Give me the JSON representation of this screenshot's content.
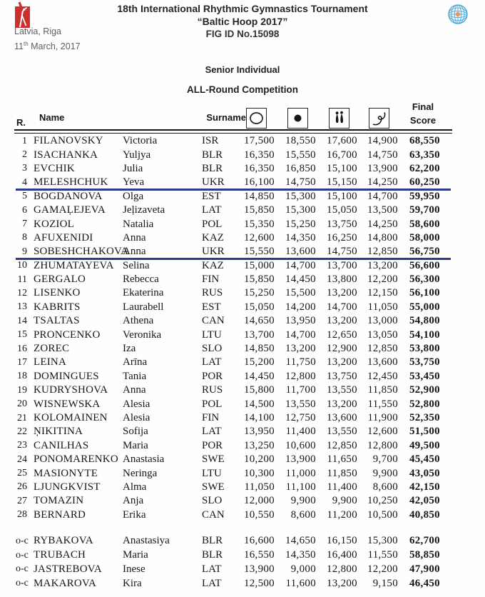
{
  "header": {
    "title_line1": "18th International Rhythmic Gymnastics Tournament",
    "title_line2": "“Baltic Hoop 2017”",
    "title_line3": "FIG ID No.15098",
    "location": "Latvia, Riga",
    "date_day": "11",
    "date_suffix": "th",
    "date_rest": " March, 2017",
    "left_logo": "gymnast-red-logo",
    "right_logo": "fig-globe-logo"
  },
  "section": {
    "line1": "Senior Individual",
    "line2": "ALL-Round Competition"
  },
  "table": {
    "headers": {
      "rank": "R.",
      "name": "Name",
      "surname": "Surname",
      "final_line1": "Final",
      "final_line2": "Score"
    },
    "apparatus": [
      "hoop",
      "ball",
      "clubs",
      "ribbon"
    ],
    "colors": {
      "divider_blue": "#2e3a8c",
      "logo_red": "#cd2f2f",
      "globe_blue": "#3f9fd0"
    },
    "blue_divider_after_ranks": [
      "4",
      "9"
    ],
    "rows": [
      {
        "rank": "1",
        "surname": "FILANOVSKY",
        "firstname": "Victoria",
        "country": "ISR",
        "hoop": "17,500",
        "ball": "18,550",
        "clubs": "17,600",
        "ribbon": "14,900",
        "final": "68,550"
      },
      {
        "rank": "2",
        "surname": "ISACHANKA",
        "firstname": "Yuljya",
        "country": "BLR",
        "hoop": "16,350",
        "ball": "15,550",
        "clubs": "16,700",
        "ribbon": "14,750",
        "final": "63,350"
      },
      {
        "rank": "3",
        "surname": "EVCHIK",
        "firstname": "Julia",
        "country": "BLR",
        "hoop": "16,350",
        "ball": "16,850",
        "clubs": "15,100",
        "ribbon": "13,900",
        "final": "62,200"
      },
      {
        "rank": "4",
        "surname": "MELESHCHUK",
        "firstname": "Yeva",
        "country": "UKR",
        "hoop": "16,100",
        "ball": "14,750",
        "clubs": "15,150",
        "ribbon": "14,250",
        "final": "60,250"
      },
      {
        "rank": "5",
        "surname": "BOGDANOVA",
        "firstname": "Olga",
        "country": "EST",
        "hoop": "14,850",
        "ball": "15,300",
        "clubs": "15,100",
        "ribbon": "14,700",
        "final": "59,950"
      },
      {
        "rank": "6",
        "surname": "GAMAĻEJEVA",
        "firstname": "Jeļizaveta",
        "country": "LAT",
        "hoop": "15,850",
        "ball": "15,300",
        "clubs": "15,050",
        "ribbon": "13,500",
        "final": "59,700"
      },
      {
        "rank": "7",
        "surname": "KOZIOL",
        "firstname": "Natalia",
        "country": "POL",
        "hoop": "15,350",
        "ball": "15,250",
        "clubs": "13,750",
        "ribbon": "14,250",
        "final": "58,600"
      },
      {
        "rank": "8",
        "surname": "AFUXENIDI",
        "firstname": "Anna",
        "country": "KAZ",
        "hoop": "12,600",
        "ball": "14,350",
        "clubs": "16,250",
        "ribbon": "14,800",
        "final": "58,000"
      },
      {
        "rank": "9",
        "surname": "SOBESHCHAKOVA",
        "firstname": "Anna",
        "country": "UKR",
        "hoop": "15,550",
        "ball": "13,600",
        "clubs": "14,750",
        "ribbon": "12,850",
        "final": "56,750"
      },
      {
        "rank": "10",
        "surname": "ZHUMATAYEVA",
        "firstname": "Selina",
        "country": "KAZ",
        "hoop": "15,000",
        "ball": "14,700",
        "clubs": "13,700",
        "ribbon": "13,200",
        "final": "56,600"
      },
      {
        "rank": "11",
        "surname": "GERGALO",
        "firstname": "Rebecca",
        "country": "FIN",
        "hoop": "15,850",
        "ball": "14,450",
        "clubs": "13,800",
        "ribbon": "12,200",
        "final": "56,300"
      },
      {
        "rank": "12",
        "surname": "LISENKO",
        "firstname": "Ekaterina",
        "country": "RUS",
        "hoop": "15,250",
        "ball": "15,500",
        "clubs": "13,200",
        "ribbon": "12,150",
        "final": "56,100"
      },
      {
        "rank": "13",
        "surname": "KABRITS",
        "firstname": "Laurabell",
        "country": "EST",
        "hoop": "15,050",
        "ball": "14,200",
        "clubs": "14,700",
        "ribbon": "11,050",
        "final": "55,000"
      },
      {
        "rank": "14",
        "surname": "TSALTAS",
        "firstname": "Athena",
        "country": "CAN",
        "hoop": "14,650",
        "ball": "13,950",
        "clubs": "13,200",
        "ribbon": "13,000",
        "final": "54,800"
      },
      {
        "rank": "15",
        "surname": "PRONCENKO",
        "firstname": "Veronika",
        "country": "LTU",
        "hoop": "13,700",
        "ball": "14,700",
        "clubs": "12,650",
        "ribbon": "13,050",
        "final": "54,100"
      },
      {
        "rank": "16",
        "surname": "ZOREC",
        "firstname": "Iza",
        "country": "SLO",
        "hoop": "14,850",
        "ball": "13,200",
        "clubs": "12,900",
        "ribbon": "12,850",
        "final": "53,800"
      },
      {
        "rank": "17",
        "surname": "LEINA",
        "firstname": "Arīna",
        "country": "LAT",
        "hoop": "15,200",
        "ball": "11,750",
        "clubs": "13,200",
        "ribbon": "13,600",
        "final": "53,750"
      },
      {
        "rank": "18",
        "surname": "DOMINGUES",
        "firstname": "Tania",
        "country": "POR",
        "hoop": "14,450",
        "ball": "12,800",
        "clubs": "13,750",
        "ribbon": "12,450",
        "final": "53,450"
      },
      {
        "rank": "19",
        "surname": "KUDRYSHOVA",
        "firstname": "Anna",
        "country": "RUS",
        "hoop": "15,800",
        "ball": "11,700",
        "clubs": "13,550",
        "ribbon": "11,850",
        "final": "52,900"
      },
      {
        "rank": "20",
        "surname": "WISNEWSKA",
        "firstname": "Alesia",
        "country": "POL",
        "hoop": "14,500",
        "ball": "13,550",
        "clubs": "13,200",
        "ribbon": "11,550",
        "final": "52,800"
      },
      {
        "rank": "21",
        "surname": "KOLOMAINEN",
        "firstname": "Alesia",
        "country": "FIN",
        "hoop": "14,100",
        "ball": "12,750",
        "clubs": "13,600",
        "ribbon": "11,900",
        "final": "52,350"
      },
      {
        "rank": "22",
        "surname": "ŅIKITINA",
        "firstname": "Sofija",
        "country": "LAT",
        "hoop": "13,950",
        "ball": "11,400",
        "clubs": "13,550",
        "ribbon": "12,600",
        "final": "51,500"
      },
      {
        "rank": "23",
        "surname": "CANILHAS",
        "firstname": "Maria",
        "country": "POR",
        "hoop": "13,250",
        "ball": "10,600",
        "clubs": "12,850",
        "ribbon": "12,800",
        "final": "49,500"
      },
      {
        "rank": "24",
        "surname": "PONOMARENKO",
        "firstname": "Anastasia",
        "country": "SWE",
        "hoop": "10,200",
        "ball": "13,900",
        "clubs": "11,650",
        "ribbon": "9,700",
        "final": "45,450"
      },
      {
        "rank": "25",
        "surname": "MASIONYTE",
        "firstname": "Neringa",
        "country": "LTU",
        "hoop": "10,300",
        "ball": "11,000",
        "clubs": "11,850",
        "ribbon": "9,900",
        "final": "43,050"
      },
      {
        "rank": "26",
        "surname": "LJUNGKVIST",
        "firstname": "Alma",
        "country": "SWE",
        "hoop": "11,050",
        "ball": "11,100",
        "clubs": "11,400",
        "ribbon": "8,600",
        "final": "42,150"
      },
      {
        "rank": "27",
        "surname": "TOMAZIN",
        "firstname": "Anja",
        "country": "SLO",
        "hoop": "12,000",
        "ball": "9,900",
        "clubs": "9,900",
        "ribbon": "10,250",
        "final": "42,050"
      },
      {
        "rank": "28",
        "surname": "BERNARD",
        "firstname": "Erika",
        "country": "CAN",
        "hoop": "10,550",
        "ball": "8,600",
        "clubs": "11,200",
        "ribbon": "10,500",
        "final": "40,850"
      }
    ],
    "oc_rows": [
      {
        "rank": "o-c",
        "surname": "RYBAKOVA",
        "firstname": "Anastasiya",
        "country": "BLR",
        "hoop": "16,600",
        "ball": "14,650",
        "clubs": "16,150",
        "ribbon": "15,300",
        "final": "62,700"
      },
      {
        "rank": "o-c",
        "surname": "TRUBACH",
        "firstname": "Maria",
        "country": "BLR",
        "hoop": "16,550",
        "ball": "14,350",
        "clubs": "16,400",
        "ribbon": "11,550",
        "final": "58,850"
      },
      {
        "rank": "o-c",
        "surname": "JASTREBOVA",
        "firstname": "Inese",
        "country": "LAT",
        "hoop": "13,900",
        "ball": "9,000",
        "clubs": "12,800",
        "ribbon": "12,200",
        "final": "47,900"
      },
      {
        "rank": "o-c",
        "surname": "MAKAROVA",
        "firstname": "Kira",
        "country": "LAT",
        "hoop": "12,500",
        "ball": "11,600",
        "clubs": "13,200",
        "ribbon": "9,150",
        "final": "46,450"
      }
    ]
  }
}
